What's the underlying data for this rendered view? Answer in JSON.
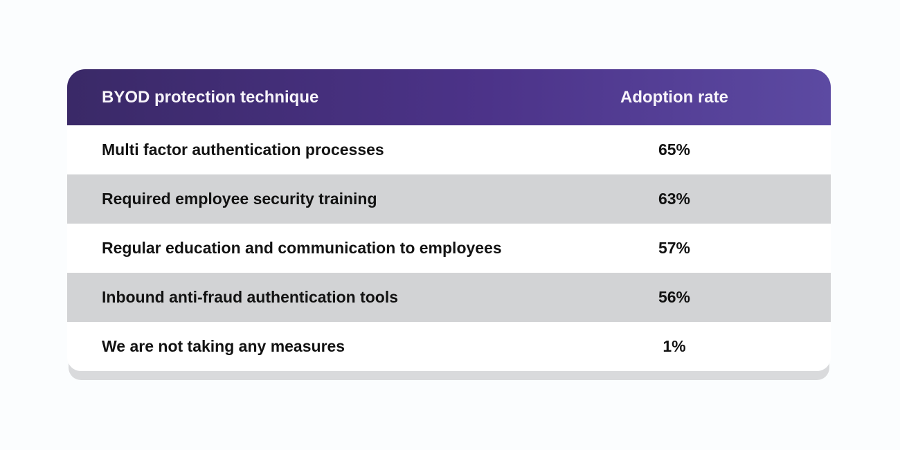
{
  "chart_data": {
    "type": "table",
    "columns": [
      "BYOD protection technique",
      "Adoption rate"
    ],
    "rows": [
      {
        "technique": "Multi factor authentication processes",
        "rate": "65%",
        "rate_value": 65
      },
      {
        "technique": "Required employee security training",
        "rate": "63%",
        "rate_value": 63
      },
      {
        "technique": "Regular education and communication to employees",
        "rate": "57%",
        "rate_value": 57
      },
      {
        "technique": "Inbound anti-fraud authentication tools",
        "rate": "56%",
        "rate_value": 56
      },
      {
        "technique": "We are not taking any measures",
        "rate": "1%",
        "rate_value": 1
      }
    ],
    "layout": {
      "striped_rows": true,
      "header_gradient_left": "#3a2967",
      "header_gradient_right": "#5c4aa2",
      "header_text_color": "#f7f4fa",
      "row_background": "#ffffff",
      "stripe_background": "#d2d3d5",
      "body_text_color": "#121212",
      "page_background": "#fbfdfe",
      "card_shadow_color": "#d9dadc"
    }
  }
}
